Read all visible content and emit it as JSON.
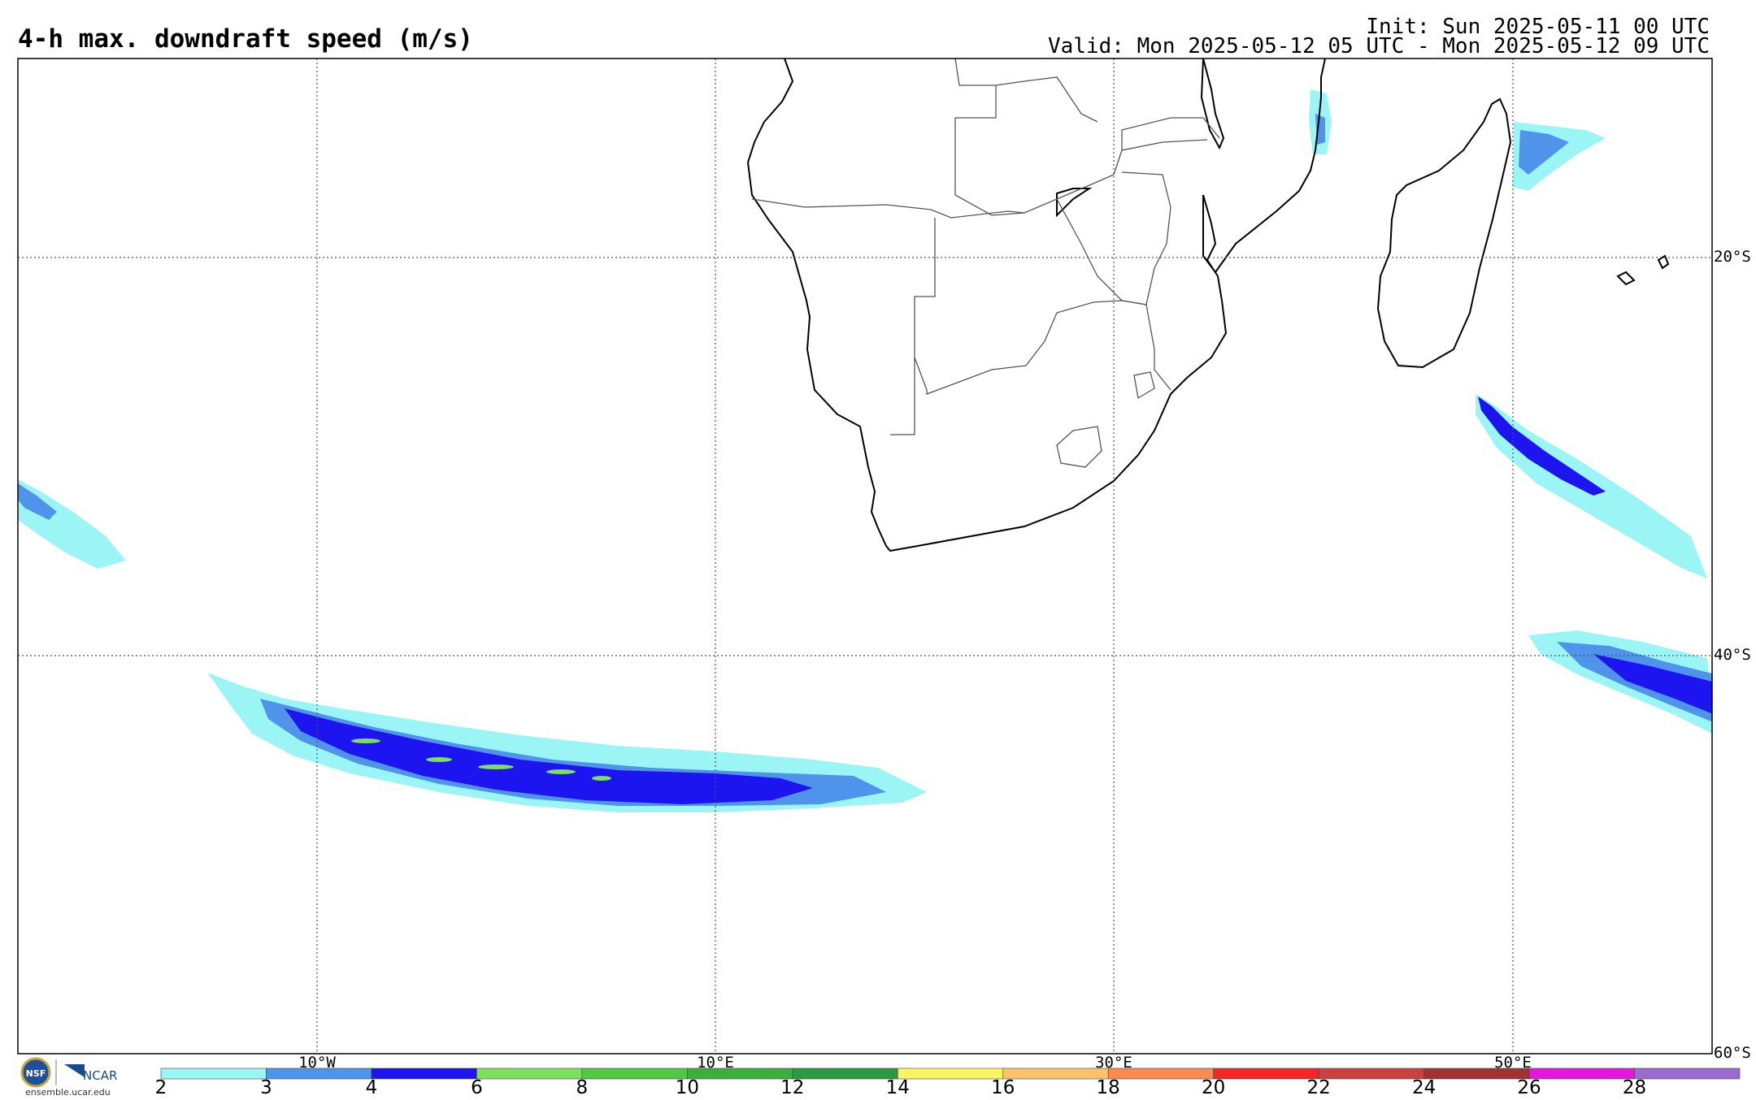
{
  "header": {
    "title": "4-h max. downdraft speed (m/s)",
    "init": "Init: Sun 2025-05-11 00 UTC",
    "valid": "Valid: Mon 2025-05-12 05 UTC - Mon 2025-05-12 09 UTC"
  },
  "map": {
    "projection": "lat-lon",
    "lon_range": [
      -25,
      60
    ],
    "lat_range": [
      -60,
      -10
    ],
    "lon_labels": [
      "10°W",
      "10°E",
      "30°E",
      "50°E"
    ],
    "lat_labels": [
      "20°S",
      "40°S",
      "60°S"
    ],
    "gridlines": "dotted"
  },
  "colorbar": {
    "ticks": [
      "2",
      "3",
      "4",
      "6",
      "8",
      "10",
      "12",
      "14",
      "16",
      "18",
      "20",
      "22",
      "24",
      "26",
      "28"
    ],
    "colors": [
      "#9bf5f5",
      "#4f93ea",
      "#1d15ef",
      "#7be05c",
      "#53c845",
      "#39b03a",
      "#2a9940",
      "#f9f45f",
      "#fbc26a",
      "#fb8a53",
      "#f52626",
      "#cb4141",
      "#a03232",
      "#e815e0",
      "#9a6acf"
    ]
  },
  "logos": {
    "nsf": "NSF",
    "ncar": "NCAR",
    "url": "ensemble.ucar.edu"
  }
}
